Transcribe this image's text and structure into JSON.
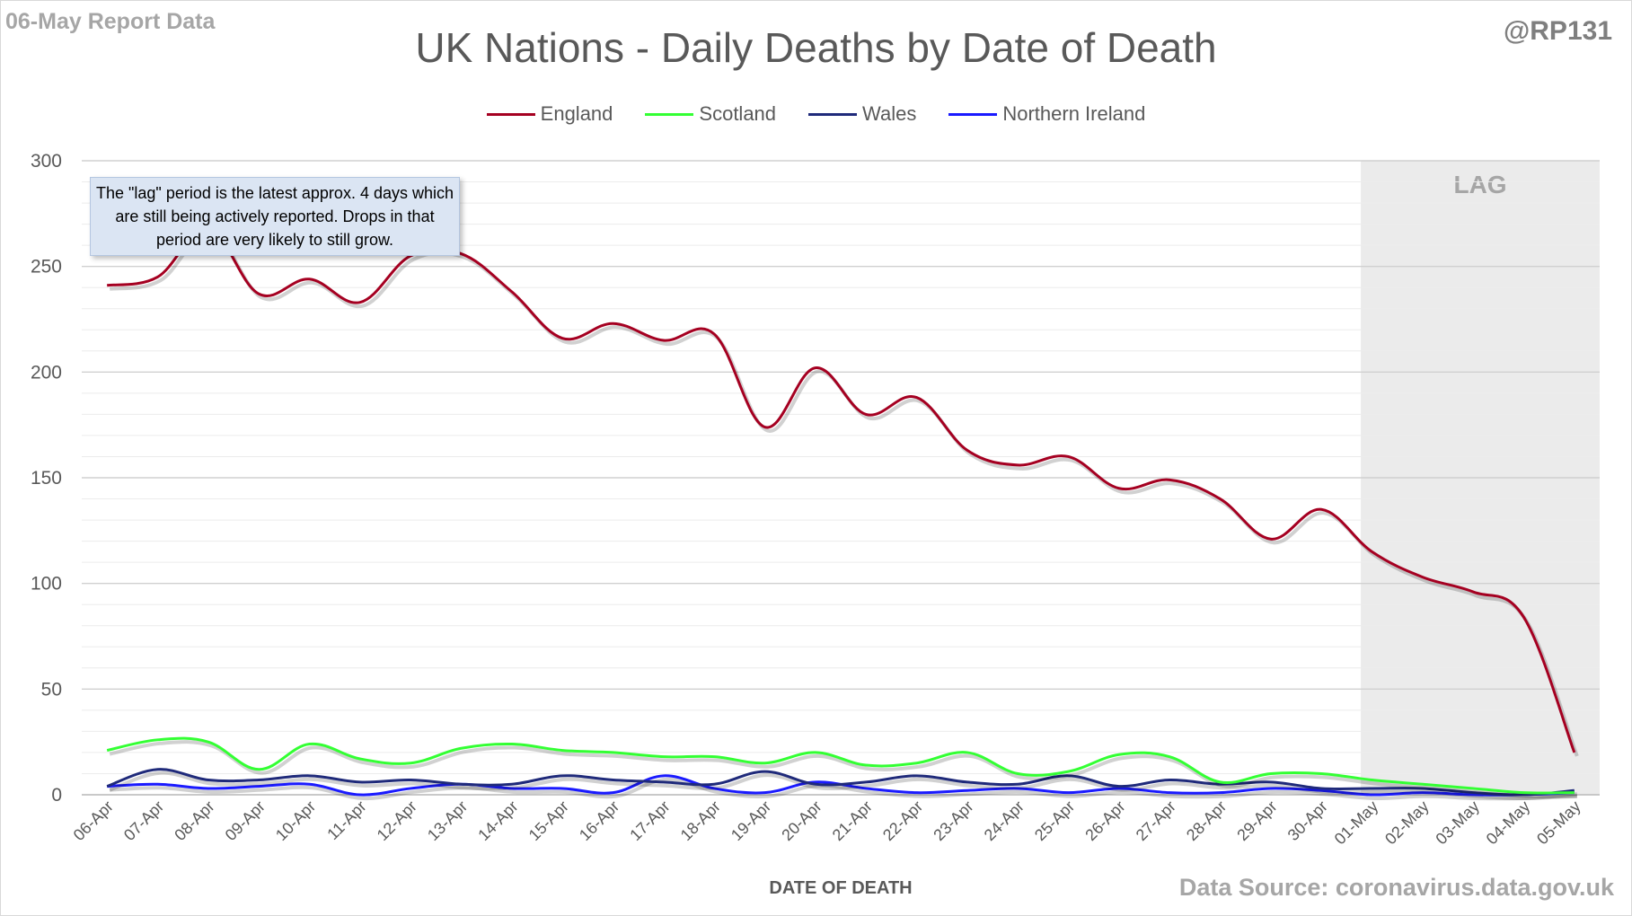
{
  "header": {
    "report_label": "06-May Report Data",
    "author": "@RP131",
    "source": "Data Source: coronavirus.data.gov.uk"
  },
  "note": {
    "text": "The \"lag\" period is the latest approx. 4 days which are still being actively reported.  Drops in that period are very likely to still grow."
  },
  "lag_label": "LAG",
  "chart_data": {
    "type": "line",
    "title": "UK Nations - Daily Deaths by Date of Death",
    "xlabel": "DATE OF DEATH",
    "ylabel": "",
    "ylim": [
      0,
      300
    ],
    "yticks": [
      0,
      50,
      100,
      150,
      200,
      250,
      300
    ],
    "grid": "horizontal major and minor lines",
    "legend_position": "top",
    "lag_period": {
      "start": "01-May",
      "end": "05-May"
    },
    "categories": [
      "06-Apr",
      "07-Apr",
      "08-Apr",
      "09-Apr",
      "10-Apr",
      "11-Apr",
      "12-Apr",
      "13-Apr",
      "14-Apr",
      "15-Apr",
      "16-Apr",
      "17-Apr",
      "18-Apr",
      "19-Apr",
      "20-Apr",
      "21-Apr",
      "22-Apr",
      "23-Apr",
      "24-Apr",
      "25-Apr",
      "26-Apr",
      "27-Apr",
      "28-Apr",
      "29-Apr",
      "30-Apr",
      "01-May",
      "02-May",
      "03-May",
      "04-May",
      "05-May"
    ],
    "series": [
      {
        "name": "England",
        "color": "#a50021",
        "values": [
          241,
          245,
          268,
          237,
          244,
          233,
          255,
          256,
          238,
          216,
          223,
          215,
          218,
          174,
          202,
          180,
          188,
          163,
          156,
          160,
          145,
          149,
          140,
          121,
          135,
          115,
          103,
          96,
          84,
          20
        ]
      },
      {
        "name": "Scotland",
        "color": "#33ff33",
        "values": [
          21,
          26,
          25,
          12,
          24,
          17,
          15,
          22,
          24,
          21,
          20,
          18,
          18,
          15,
          20,
          14,
          15,
          20,
          10,
          11,
          19,
          18,
          6,
          10,
          10,
          7,
          5,
          3,
          1,
          1
        ]
      },
      {
        "name": "Wales",
        "color": "#1f2a7a",
        "values": [
          4,
          12,
          7,
          7,
          9,
          6,
          7,
          5,
          5,
          9,
          7,
          6,
          5,
          11,
          5,
          6,
          9,
          6,
          5,
          9,
          4,
          7,
          5,
          6,
          3,
          3,
          3,
          1,
          0,
          2
        ]
      },
      {
        "name": "Northern Ireland",
        "color": "#1a1aff",
        "values": [
          4,
          5,
          3,
          4,
          5,
          0,
          3,
          5,
          3,
          3,
          1,
          9,
          3,
          1,
          6,
          3,
          1,
          2,
          3,
          1,
          3,
          1,
          1,
          3,
          2,
          0,
          1,
          0,
          0,
          1
        ]
      }
    ]
  }
}
